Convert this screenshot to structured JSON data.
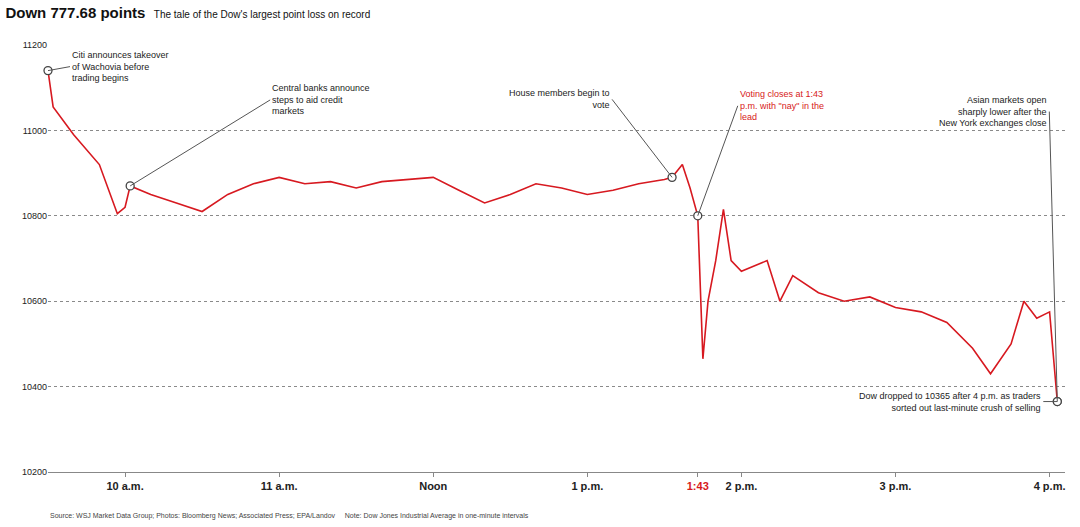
{
  "chart_data": {
    "type": "line",
    "title": "Down 777.68 points",
    "subtitle": "The tale of the Dow's largest point loss on record",
    "x": [
      9.5,
      9.5333,
      9.6667,
      9.8333,
      9.95,
      10,
      10.0333,
      10.1667,
      10.3333,
      10.5,
      10.6667,
      10.8333,
      11,
      11.1667,
      11.3333,
      11.5,
      11.6667,
      11.8333,
      12,
      12.1667,
      12.3333,
      12.5,
      12.6667,
      12.8333,
      13,
      13.1667,
      13.3333,
      13.5,
      13.55,
      13.6167,
      13.6667,
      13.7167,
      13.75,
      13.7833,
      13.8333,
      13.8833,
      13.9333,
      14,
      14.1667,
      14.25,
      14.3333,
      14.5,
      14.6667,
      14.8333,
      15,
      15.1667,
      15.3333,
      15.5,
      15.6167,
      15.75,
      15.8333,
      15.9167,
      16,
      16.05
    ],
    "values": [
      11140,
      11055,
      10990,
      10920,
      10805,
      10820,
      10870,
      10850,
      10830,
      10810,
      10850,
      10875,
      10890,
      10875,
      10880,
      10865,
      10880,
      10885,
      10890,
      10860,
      10830,
      10850,
      10875,
      10865,
      10850,
      10860,
      10875,
      10885,
      10890,
      10920,
      10865,
      10800,
      10465,
      10600,
      10695,
      10815,
      10695,
      10670,
      10695,
      10600,
      10660,
      10620,
      10600,
      10610,
      10585,
      10575,
      10550,
      10490,
      10430,
      10500,
      10600,
      10560,
      10575,
      10365
    ],
    "color": "#d71920",
    "xlim": [
      9.5,
      16.1
    ],
    "xticks": [
      {
        "value": 10,
        "label": "10 a.m."
      },
      {
        "value": 11,
        "label": "11 a.m."
      },
      {
        "value": 12,
        "label": "Noon"
      },
      {
        "value": 13,
        "label": "1 p.m."
      },
      {
        "value": 13.7167,
        "label": "1:43"
      },
      {
        "value": 14,
        "label": "2 p.m."
      },
      {
        "value": 15,
        "label": "3 p.m."
      },
      {
        "value": 16,
        "label": "4 p.m."
      }
    ],
    "ylim": [
      10200,
      11200
    ],
    "yticks": [
      10200,
      10400,
      10600,
      10800,
      11000,
      11200
    ],
    "grid": true,
    "annotations": [
      {
        "text": "Citi announces takeover of Wachovia before trading begins",
        "x": 9.5,
        "y": 11140
      },
      {
        "text": "Central banks announce steps to aid credit markets",
        "x": 10.0333,
        "y": 10870
      },
      {
        "text": "House members begin to vote",
        "x": 13.55,
        "y": 10890
      },
      {
        "text": "Voting closes at 1:43 p.m. with \"nay\" in the lead",
        "x": 13.7167,
        "y": 10800,
        "color": "#d71920"
      },
      {
        "text": "Asian markets open sharply lower after the New York exchanges close",
        "x": 16.05,
        "y": 10365
      },
      {
        "text": "Dow dropped to 10365 after 4 p.m. as traders sorted out last-minute crush of selling",
        "x": 16.05,
        "y": 10365
      }
    ],
    "source": "Source: WSJ Market Data Group; Photos: Bloomberg News; Associated Press; EPA/Landov",
    "note": "Note: Dow Jones Industrial Average in one-minute intervals"
  }
}
